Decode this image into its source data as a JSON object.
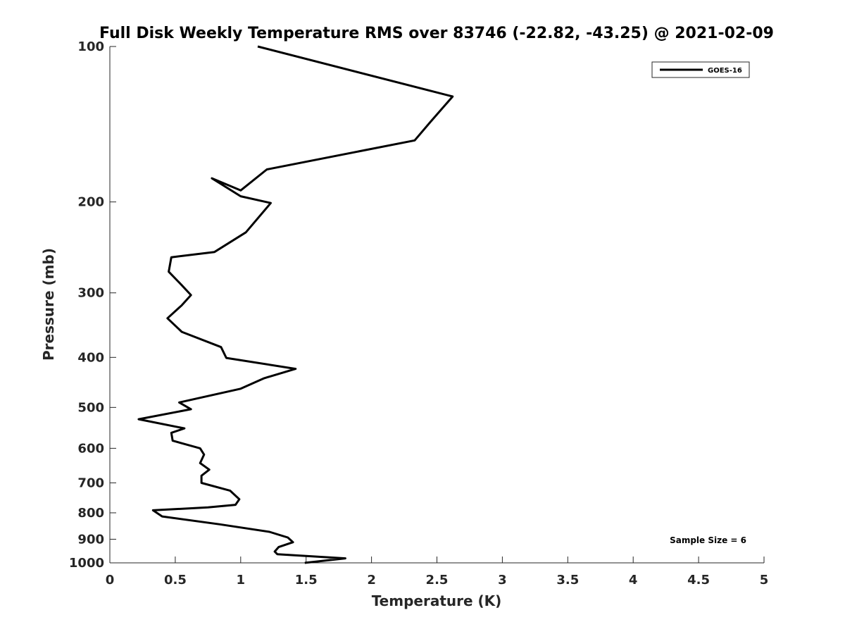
{
  "chart_data": {
    "type": "line",
    "title": "Full Disk Weekly Temperature RMS over 83746 (-22.82, -43.25) @ 2021-02-09",
    "xlabel": "Temperature (K)",
    "ylabel": "Pressure (mb)",
    "xlim": [
      0,
      5
    ],
    "ylim": [
      100,
      1000
    ],
    "yscale": "log",
    "y_reversed": true,
    "x_ticks": [
      "0",
      "0.5",
      "1",
      "1.5",
      "2",
      "2.5",
      "3",
      "3.5",
      "4",
      "4.5",
      "5"
    ],
    "y_ticks": [
      "100",
      "200",
      "300",
      "400",
      "500",
      "600",
      "700",
      "800",
      "900",
      "1000"
    ],
    "grid": false,
    "legend_position": "top-right",
    "annotation": "Sample Size = 6",
    "series": [
      {
        "name": "GOES-16",
        "color": "#000000",
        "x": [
          1.13,
          2.62,
          2.45,
          2.33,
          1.2,
          1.0,
          0.78,
          1.0,
          1.23,
          1.04,
          0.8,
          0.47,
          0.45,
          0.55,
          0.62,
          0.55,
          0.44,
          0.55,
          0.85,
          0.89,
          1.42,
          1.18,
          1.0,
          0.53,
          0.62,
          0.22,
          0.57,
          0.47,
          0.48,
          0.69,
          0.72,
          0.69,
          0.76,
          0.7,
          0.7,
          0.92,
          0.99,
          0.96,
          0.75,
          0.33,
          0.4,
          0.84,
          1.22,
          1.36,
          1.4,
          1.29,
          1.26,
          1.28,
          1.8,
          1.49
        ],
        "y": [
          100,
          125,
          140,
          152,
          173,
          190,
          180,
          195,
          201,
          229,
          250,
          256,
          273,
          290,
          303,
          317,
          336,
          357,
          382,
          401,
          421,
          439,
          460,
          489,
          504,
          527,
          549,
          560,
          580,
          600,
          617,
          641,
          660,
          678,
          700,
          725,
          753,
          772,
          781,
          791,
          813,
          842,
          871,
          893,
          912,
          932,
          951,
          962,
          980,
          1000
        ]
      }
    ]
  }
}
